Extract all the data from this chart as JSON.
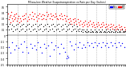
{
  "title": "Milwaukee Weather Evapotranspiration vs Rain per Day (Inches)",
  "legend_labels": [
    "Rain",
    "ET"
  ],
  "legend_colors": [
    "#0000ff",
    "#ff0000"
  ],
  "bg_color": "#ffffff",
  "month_boundaries": [
    1,
    32,
    60,
    91,
    121,
    152,
    182,
    213,
    244,
    274,
    305,
    335,
    366
  ],
  "et_data": [
    [
      3,
      0.38
    ],
    [
      5,
      0.28
    ],
    [
      7,
      0.32
    ],
    [
      9,
      0.22
    ],
    [
      11,
      0.35
    ],
    [
      13,
      0.4
    ],
    [
      15,
      0.3
    ],
    [
      17,
      0.25
    ],
    [
      19,
      0.33
    ],
    [
      21,
      0.36
    ],
    [
      23,
      0.28
    ],
    [
      25,
      0.31
    ],
    [
      28,
      0.38
    ],
    [
      30,
      0.26
    ],
    [
      33,
      0.29
    ],
    [
      35,
      0.34
    ],
    [
      38,
      0.22
    ],
    [
      40,
      0.3
    ],
    [
      43,
      0.25
    ],
    [
      46,
      0.33
    ],
    [
      49,
      0.28
    ],
    [
      52,
      0.35
    ],
    [
      55,
      0.3
    ],
    [
      58,
      0.38
    ],
    [
      61,
      0.25
    ],
    [
      64,
      0.32
    ],
    [
      67,
      0.28
    ],
    [
      70,
      0.36
    ],
    [
      73,
      0.3
    ],
    [
      76,
      0.4
    ],
    [
      79,
      0.34
    ],
    [
      82,
      0.28
    ],
    [
      85,
      0.38
    ],
    [
      88,
      0.32
    ],
    [
      91,
      0.26
    ],
    [
      94,
      0.35
    ],
    [
      97,
      0.3
    ],
    [
      100,
      0.38
    ],
    [
      103,
      0.33
    ],
    [
      106,
      0.28
    ],
    [
      109,
      0.36
    ],
    [
      112,
      0.3
    ],
    [
      115,
      0.35
    ],
    [
      118,
      0.28
    ],
    [
      121,
      0.4
    ],
    [
      124,
      0.33
    ],
    [
      127,
      0.36
    ],
    [
      130,
      0.3
    ],
    [
      133,
      0.38
    ],
    [
      136,
      0.33
    ],
    [
      139,
      0.28
    ],
    [
      142,
      0.35
    ],
    [
      145,
      0.32
    ],
    [
      148,
      0.38
    ],
    [
      151,
      0.33
    ],
    [
      154,
      0.3
    ],
    [
      157,
      0.28
    ],
    [
      160,
      0.35
    ],
    [
      163,
      0.3
    ],
    [
      166,
      0.38
    ],
    [
      169,
      0.33
    ],
    [
      172,
      0.28
    ],
    [
      175,
      0.35
    ],
    [
      178,
      0.3
    ],
    [
      181,
      0.25
    ],
    [
      184,
      0.33
    ],
    [
      187,
      0.28
    ],
    [
      190,
      0.22
    ],
    [
      193,
      0.3
    ],
    [
      196,
      0.25
    ],
    [
      199,
      0.2
    ],
    [
      202,
      0.28
    ],
    [
      205,
      0.22
    ],
    [
      208,
      0.3
    ],
    [
      211,
      0.25
    ],
    [
      214,
      0.2
    ],
    [
      217,
      0.28
    ],
    [
      220,
      0.22
    ],
    [
      223,
      0.18
    ],
    [
      226,
      0.25
    ],
    [
      229,
      0.2
    ],
    [
      232,
      0.15
    ],
    [
      235,
      0.22
    ],
    [
      238,
      0.18
    ],
    [
      241,
      0.25
    ],
    [
      244,
      0.2
    ],
    [
      247,
      0.15
    ],
    [
      250,
      0.22
    ],
    [
      253,
      0.18
    ],
    [
      256,
      0.25
    ],
    [
      259,
      0.2
    ],
    [
      262,
      0.16
    ],
    [
      265,
      0.22
    ],
    [
      268,
      0.18
    ],
    [
      271,
      0.14
    ],
    [
      274,
      0.2
    ],
    [
      277,
      0.16
    ],
    [
      280,
      0.22
    ],
    [
      283,
      0.18
    ],
    [
      286,
      0.14
    ],
    [
      289,
      0.2
    ],
    [
      292,
      0.16
    ],
    [
      295,
      0.22
    ],
    [
      298,
      0.18
    ],
    [
      301,
      0.14
    ],
    [
      304,
      0.2
    ],
    [
      307,
      0.16
    ],
    [
      310,
      0.12
    ],
    [
      313,
      0.18
    ],
    [
      316,
      0.14
    ],
    [
      319,
      0.2
    ],
    [
      322,
      0.16
    ],
    [
      325,
      0.12
    ],
    [
      328,
      0.18
    ],
    [
      331,
      0.14
    ],
    [
      334,
      0.1
    ],
    [
      337,
      0.16
    ],
    [
      340,
      0.12
    ],
    [
      343,
      0.18
    ],
    [
      346,
      0.14
    ],
    [
      349,
      0.1
    ],
    [
      352,
      0.16
    ],
    [
      355,
      0.12
    ],
    [
      358,
      0.08
    ],
    [
      361,
      0.14
    ],
    [
      364,
      0.1
    ]
  ],
  "rain_data": [
    [
      4,
      -0.2
    ],
    [
      10,
      -0.3
    ],
    [
      16,
      -0.12
    ],
    [
      22,
      -0.25
    ],
    [
      27,
      -0.18
    ],
    [
      34,
      -0.22
    ],
    [
      41,
      -0.15
    ],
    [
      47,
      -0.28
    ],
    [
      53,
      -0.1
    ],
    [
      59,
      -0.2
    ],
    [
      65,
      -0.3
    ],
    [
      71,
      -0.15
    ],
    [
      77,
      -0.22
    ],
    [
      83,
      -0.18
    ],
    [
      89,
      -0.25
    ],
    [
      95,
      -0.12
    ],
    [
      101,
      -0.2
    ],
    [
      107,
      -0.3
    ],
    [
      113,
      -0.15
    ],
    [
      119,
      -0.22
    ],
    [
      125,
      -0.18
    ],
    [
      131,
      -0.35
    ],
    [
      137,
      -0.12
    ],
    [
      143,
      -0.25
    ],
    [
      149,
      -0.18
    ],
    [
      155,
      -0.2
    ],
    [
      161,
      -0.32
    ],
    [
      167,
      -0.15
    ],
    [
      173,
      -0.22
    ],
    [
      179,
      -0.28
    ],
    [
      183,
      -0.4
    ],
    [
      186,
      -0.35
    ],
    [
      189,
      -0.38
    ],
    [
      193,
      -0.1
    ],
    [
      199,
      -0.18
    ],
    [
      205,
      -0.25
    ],
    [
      211,
      -0.15
    ],
    [
      217,
      -0.2
    ],
    [
      223,
      -0.12
    ],
    [
      229,
      -0.22
    ],
    [
      235,
      -0.16
    ],
    [
      241,
      -0.2
    ],
    [
      247,
      -0.12
    ],
    [
      253,
      -0.18
    ],
    [
      259,
      -0.14
    ],
    [
      265,
      -0.2
    ],
    [
      271,
      -0.12
    ],
    [
      277,
      -0.18
    ],
    [
      283,
      -0.14
    ],
    [
      289,
      -0.2
    ],
    [
      295,
      -0.12
    ],
    [
      301,
      -0.18
    ],
    [
      307,
      -0.14
    ],
    [
      313,
      -0.2
    ],
    [
      319,
      -0.12
    ],
    [
      325,
      -0.18
    ],
    [
      331,
      -0.14
    ],
    [
      337,
      -0.2
    ],
    [
      343,
      -0.12
    ],
    [
      349,
      -0.18
    ],
    [
      355,
      -0.14
    ],
    [
      361,
      -0.2
    ]
  ],
  "black_data": [
    [
      2,
      0.15
    ],
    [
      6,
      0.1
    ],
    [
      8,
      0.2
    ],
    [
      12,
      0.12
    ],
    [
      14,
      0.18
    ],
    [
      18,
      0.08
    ],
    [
      20,
      0.15
    ],
    [
      24,
      0.1
    ],
    [
      26,
      0.18
    ],
    [
      29,
      0.12
    ],
    [
      31,
      0.2
    ],
    [
      36,
      0.08
    ],
    [
      39,
      0.15
    ],
    [
      42,
      0.1
    ],
    [
      45,
      0.18
    ],
    [
      48,
      0.12
    ],
    [
      50,
      0.2
    ],
    [
      54,
      0.08
    ],
    [
      56,
      0.15
    ],
    [
      60,
      0.1
    ],
    [
      63,
      0.18
    ],
    [
      66,
      0.12
    ],
    [
      68,
      0.2
    ],
    [
      72,
      0.08
    ],
    [
      74,
      0.15
    ],
    [
      78,
      0.1
    ],
    [
      80,
      0.18
    ],
    [
      84,
      0.12
    ],
    [
      87,
      0.2
    ],
    [
      90,
      0.08
    ],
    [
      93,
      0.15
    ],
    [
      96,
      0.1
    ],
    [
      99,
      0.18
    ],
    [
      102,
      0.12
    ],
    [
      105,
      0.2
    ],
    [
      108,
      0.08
    ],
    [
      111,
      0.15
    ],
    [
      114,
      0.1
    ],
    [
      117,
      0.18
    ],
    [
      120,
      0.12
    ],
    [
      123,
      0.2
    ],
    [
      126,
      0.08
    ],
    [
      129,
      0.15
    ],
    [
      132,
      0.1
    ],
    [
      135,
      0.18
    ],
    [
      138,
      0.12
    ],
    [
      141,
      0.2
    ],
    [
      144,
      0.08
    ],
    [
      147,
      0.15
    ],
    [
      150,
      0.1
    ],
    [
      153,
      0.18
    ],
    [
      156,
      0.12
    ],
    [
      159,
      0.2
    ],
    [
      162,
      0.08
    ],
    [
      165,
      0.15
    ],
    [
      168,
      0.1
    ],
    [
      171,
      0.18
    ],
    [
      174,
      0.12
    ],
    [
      177,
      0.2
    ],
    [
      180,
      0.08
    ],
    [
      182,
      0.15
    ],
    [
      185,
      0.1
    ],
    [
      188,
      0.18
    ],
    [
      191,
      0.12
    ],
    [
      194,
      0.2
    ],
    [
      197,
      0.08
    ],
    [
      200,
      0.15
    ],
    [
      203,
      0.1
    ],
    [
      206,
      0.18
    ],
    [
      209,
      0.12
    ],
    [
      212,
      0.08
    ],
    [
      215,
      0.15
    ],
    [
      218,
      0.1
    ],
    [
      221,
      0.08
    ],
    [
      224,
      0.12
    ],
    [
      227,
      0.08
    ],
    [
      230,
      0.1
    ],
    [
      233,
      0.06
    ],
    [
      236,
      0.1
    ],
    [
      239,
      0.08
    ],
    [
      242,
      0.06
    ],
    [
      245,
      0.1
    ],
    [
      248,
      0.06
    ],
    [
      251,
      0.08
    ],
    [
      254,
      0.06
    ],
    [
      257,
      0.1
    ],
    [
      260,
      0.06
    ],
    [
      263,
      0.08
    ],
    [
      266,
      0.06
    ],
    [
      269,
      0.1
    ],
    [
      272,
      0.06
    ],
    [
      275,
      0.08
    ],
    [
      278,
      0.06
    ],
    [
      281,
      0.1
    ],
    [
      284,
      0.06
    ],
    [
      287,
      0.08
    ],
    [
      290,
      0.06
    ],
    [
      293,
      0.1
    ],
    [
      296,
      0.06
    ],
    [
      299,
      0.08
    ],
    [
      302,
      0.06
    ],
    [
      305,
      0.1
    ],
    [
      308,
      0.06
    ],
    [
      311,
      0.08
    ],
    [
      314,
      0.06
    ],
    [
      317,
      0.1
    ],
    [
      320,
      0.06
    ],
    [
      323,
      0.08
    ],
    [
      326,
      0.06
    ],
    [
      329,
      0.1
    ],
    [
      332,
      0.06
    ],
    [
      335,
      0.08
    ],
    [
      338,
      0.06
    ],
    [
      341,
      0.1
    ],
    [
      344,
      0.06
    ],
    [
      347,
      0.08
    ],
    [
      350,
      0.06
    ],
    [
      353,
      0.1
    ],
    [
      356,
      0.06
    ],
    [
      359,
      0.08
    ],
    [
      362,
      0.06
    ],
    [
      365,
      0.08
    ]
  ],
  "ylim": [
    -0.5,
    0.55
  ],
  "xlim": [
    0,
    366
  ],
  "ylabel_values": [
    "0.5",
    "0.4",
    "0.3",
    "0.2",
    "0.1",
    "0",
    "-0.1",
    "-0.2",
    "-0.3",
    "-0.4",
    "-0.5"
  ]
}
